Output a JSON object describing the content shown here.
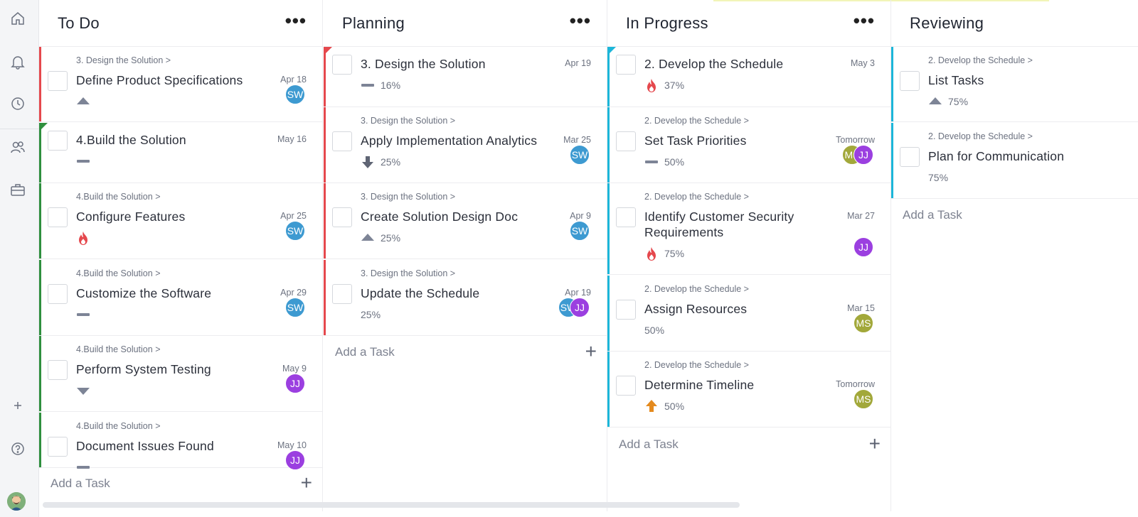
{
  "sidebar": {
    "icons": [
      "home-icon",
      "bell-icon",
      "clock-icon",
      "users-icon",
      "briefcase-icon",
      "plus-icon",
      "help-icon"
    ]
  },
  "colors": {
    "red": "#e5484d",
    "green": "#2f8f3e",
    "cyan": "#1cb6d9",
    "sw": "#3d9ad1",
    "jj": "#9b3fe0",
    "ms": "#a2a83a"
  },
  "columns": [
    {
      "title": "To Do",
      "has_menu": true,
      "menu_label": "•••",
      "add_task": "Add a Task",
      "cards": [
        {
          "crumb": "3. Design the Solution >",
          "title": "Define Product Specifications",
          "date": "Apr 18",
          "priority": "up",
          "pct": "",
          "avatars": [
            "SW"
          ]
        },
        {
          "crumb": "",
          "title": "4.Build the Solution",
          "date": "May 16",
          "priority": "line",
          "pct": "",
          "avatars": []
        },
        {
          "crumb": "4.Build the Solution >",
          "title": "Configure Features",
          "date": "Apr 25",
          "priority": "fire",
          "pct": "",
          "avatars": [
            "SW"
          ]
        },
        {
          "crumb": "4.Build the Solution >",
          "title": "Customize the Software",
          "date": "Apr 29",
          "priority": "line",
          "pct": "",
          "avatars": [
            "SW"
          ]
        },
        {
          "crumb": "4.Build the Solution >",
          "title": "Perform System Testing",
          "date": "May 9",
          "priority": "down",
          "pct": "",
          "avatars": [
            "JJ"
          ]
        },
        {
          "crumb": "4.Build the Solution >",
          "title": "Document Issues Found",
          "date": "May 10",
          "priority": "line",
          "pct": "",
          "avatars": [
            "JJ"
          ]
        }
      ]
    },
    {
      "title": "Planning",
      "has_menu": true,
      "menu_label": "•••",
      "add_task": "Add a Task",
      "cards": [
        {
          "crumb": "",
          "title": "3. Design the Solution",
          "date": "Apr 19",
          "priority": "line",
          "pct": "16%",
          "avatars": []
        },
        {
          "crumb": "3. Design the Solution >",
          "title": "Apply Implementation Analytics",
          "date": "Mar 25",
          "priority": "arrow-down",
          "pct": "25%",
          "avatars": [
            "SW"
          ]
        },
        {
          "crumb": "3. Design the Solution >",
          "title": "Create Solution Design Doc",
          "date": "Apr 9",
          "priority": "up",
          "pct": "25%",
          "avatars": [
            "SW"
          ]
        },
        {
          "crumb": "3. Design the Solution >",
          "title": "Update the Schedule",
          "date": "Apr 19",
          "priority": "",
          "pct": "25%",
          "avatars": [
            "JJ",
            "SW"
          ]
        }
      ]
    },
    {
      "title": "In Progress",
      "has_menu": true,
      "menu_label": "•••",
      "add_task": "Add a Task",
      "cards": [
        {
          "crumb": "",
          "title": "2. Develop the Schedule",
          "date": "May 3",
          "priority": "fire",
          "pct": "37%",
          "avatars": []
        },
        {
          "crumb": "2. Develop the Schedule >",
          "title": "Set Task Priorities",
          "date": "Tomorrow",
          "priority": "line",
          "pct": "50%",
          "avatars": [
            "JJ",
            "MS"
          ]
        },
        {
          "crumb": "2. Develop the Schedule >",
          "title": "Identify Customer Security",
          "title2": "Requirements",
          "date": "Mar 27",
          "priority": "fire",
          "pct": "75%",
          "avatars": [
            "JJ"
          ]
        },
        {
          "crumb": "2. Develop the Schedule >",
          "title": "Assign Resources",
          "date": "Mar 15",
          "priority": "",
          "pct": "50%",
          "avatars": [
            "MS"
          ]
        },
        {
          "crumb": "2. Develop the Schedule >",
          "title": "Determine Timeline",
          "date": "Tomorrow",
          "priority": "arrow-up",
          "pct": "50%",
          "avatars": [
            "MS"
          ]
        }
      ]
    },
    {
      "title": "Reviewing",
      "has_menu": false,
      "add_task": "Add a Task",
      "cards": [
        {
          "crumb": "2. Develop the Schedule >",
          "title": "List Tasks",
          "date": "",
          "priority": "up",
          "pct": "75%",
          "avatars": []
        },
        {
          "crumb": "2. Develop the Schedule >",
          "title": "Plan for Communication",
          "date": "",
          "priority": "",
          "pct": "75%",
          "avatars": []
        }
      ]
    }
  ]
}
